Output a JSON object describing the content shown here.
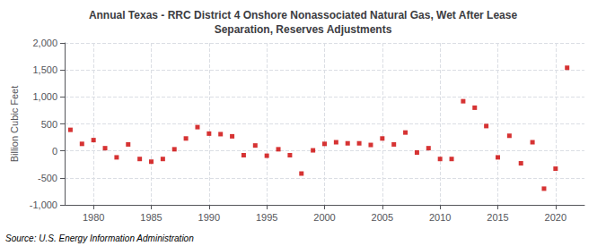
{
  "chart_data": {
    "type": "scatter",
    "title": "Annual Texas - RRC District 4 Onshore Nonassociated Natural Gas, Wet After Lease\nSeparation, Reserves Adjustments",
    "ylabel": "Billion Cubic Feet",
    "annotation": "Source: U.S. Energy Information Administration",
    "x": [
      1978,
      1979,
      1980,
      1981,
      1982,
      1983,
      1984,
      1985,
      1986,
      1987,
      1988,
      1989,
      1990,
      1991,
      1992,
      1993,
      1994,
      1995,
      1996,
      1997,
      1998,
      1999,
      2000,
      2001,
      2002,
      2003,
      2004,
      2005,
      2006,
      2007,
      2008,
      2009,
      2010,
      2011,
      2012,
      2013,
      2014,
      2015,
      2016,
      2017,
      2018,
      2019,
      2020,
      2021
    ],
    "values": [
      390,
      130,
      200,
      50,
      -120,
      120,
      -150,
      -200,
      -150,
      30,
      230,
      440,
      320,
      310,
      270,
      -80,
      100,
      -90,
      30,
      -80,
      -420,
      10,
      130,
      160,
      140,
      140,
      110,
      230,
      120,
      340,
      -30,
      50,
      -150,
      -150,
      920,
      800,
      460,
      -120,
      280,
      -230,
      160,
      -700,
      -330,
      1540
    ],
    "color": "#cc0000",
    "marker": "square",
    "xlim": [
      1977.5,
      2022.5
    ],
    "xticks": [
      1980,
      1985,
      1990,
      1995,
      2000,
      2005,
      2010,
      2015,
      2020
    ],
    "ylim": [
      -1000,
      2000
    ],
    "yticks": [
      {
        "value": -1000,
        "label": "-1,000"
      },
      -500,
      0,
      500,
      {
        "value": 1000,
        "label": "1,000"
      },
      {
        "value": 1500,
        "label": "1,500"
      },
      {
        "value": 2000,
        "label": "2,000"
      }
    ],
    "grid": true
  }
}
